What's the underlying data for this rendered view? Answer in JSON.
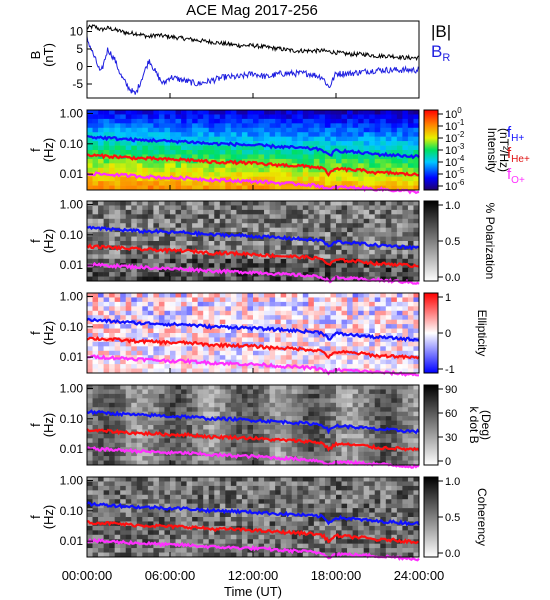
{
  "chart_data": {
    "type": "heatmap",
    "title": "ACE Mag 2017-256",
    "xlabel": "Time (UT)",
    "x_ticks": [
      "00:00:00",
      "06:00:00",
      "12:00:00",
      "18:00:00",
      "24:00:00"
    ],
    "xlim": [
      0,
      24
    ],
    "panels": [
      {
        "id": "b-field",
        "type": "line",
        "ylabel_main": "B",
        "ylabel_unit": "(nT)",
        "ylim": [
          -9,
          13
        ],
        "y_ticks": [
          "10",
          "5",
          "0",
          "-5"
        ],
        "y_tick_values": [
          10,
          5,
          0,
          -5
        ],
        "legend": [
          "|B|",
          "B_R"
        ],
        "series": [
          {
            "name": "|B|",
            "color": "#000000",
            "x": [
              0,
              0.5,
              1,
              1.5,
              2,
              2.5,
              3,
              3.5,
              4,
              4.5,
              5,
              6,
              7,
              8,
              9,
              10,
              11,
              12,
              13,
              14,
              15,
              16,
              17,
              18,
              19,
              20,
              21,
              22,
              23,
              24
            ],
            "values": [
              11,
              11.5,
              10.5,
              11,
              10.5,
              10,
              9.5,
              9.5,
              9,
              8.5,
              9,
              8.5,
              8,
              7.5,
              7,
              6.5,
              6,
              6,
              5.5,
              5,
              4.5,
              4.5,
              4.5,
              4,
              3.5,
              3.5,
              3,
              3,
              2.5,
              2.5
            ]
          },
          {
            "name": "B_R",
            "color": "#1f1fe0",
            "x": [
              0,
              0.5,
              1,
              1.5,
              2,
              2.5,
              3,
              3.5,
              4,
              4.5,
              5,
              5.5,
              6,
              7,
              8,
              9,
              10,
              11,
              12,
              13,
              14,
              15,
              16,
              17,
              17.5,
              18,
              19,
              20,
              21,
              22,
              23,
              24
            ],
            "values": [
              8,
              3,
              -2,
              5,
              2,
              -3,
              -6,
              -8,
              -3,
              2,
              -2,
              -5,
              -3,
              -4,
              -5,
              -4,
              -3,
              -3,
              -2,
              -3,
              -2,
              -2,
              -2,
              -3,
              -6,
              -2,
              -2,
              -1.5,
              -1,
              -1,
              -1,
              -1
            ]
          }
        ]
      },
      {
        "id": "intensity",
        "type": "heatmap",
        "ylabel_main": "f",
        "ylabel_unit": "(Hz)",
        "y_ticks": [
          "1.00",
          "0.10",
          "0.01"
        ],
        "colorbar_ticks": [
          "10^0",
          "10^-1",
          "10^-2",
          "10^-3",
          "10^-4",
          "10^-5",
          "10^-6"
        ],
        "colorbar_label": "Intensity",
        "colorbar_unit": "(nT²/Hz)",
        "legend": [
          "f_H+",
          "f_He+",
          "f_O+"
        ]
      },
      {
        "id": "polarization",
        "type": "heatmap",
        "ylabel_main": "f",
        "ylabel_unit": "(Hz)",
        "y_ticks": [
          "1.00",
          "0.10",
          "0.01"
        ],
        "colorbar_ticks": [
          "1.0",
          "0.5",
          "0.0"
        ],
        "colorbar_label": "% Polarization"
      },
      {
        "id": "ellipticity",
        "type": "heatmap",
        "ylabel_main": "f",
        "ylabel_unit": "(Hz)",
        "y_ticks": [
          "1.00",
          "0.10",
          "0.01"
        ],
        "colorbar_ticks": [
          "1",
          "0",
          "-1"
        ],
        "colorbar_label": "Ellipticity"
      },
      {
        "id": "kdotb",
        "type": "heatmap",
        "ylabel_main": "f",
        "ylabel_unit": "(Hz)",
        "y_ticks": [
          "1.00",
          "0.10",
          "0.01"
        ],
        "colorbar_ticks": [
          "90",
          "60",
          "30",
          "0"
        ],
        "colorbar_label": "k dot B",
        "colorbar_unit": "(Deg)"
      },
      {
        "id": "coherency",
        "type": "heatmap",
        "ylabel_main": "f",
        "ylabel_unit": "(Hz)",
        "y_ticks": [
          "1.00",
          "0.10",
          "0.01"
        ],
        "colorbar_ticks": [
          "1.0",
          "0.5",
          "0.0"
        ],
        "colorbar_label": "Coherency"
      }
    ],
    "gyrofrequency_curves": {
      "x": [
        0,
        1,
        2,
        3,
        4,
        5,
        6,
        7,
        8,
        9,
        10,
        11,
        12,
        13,
        14,
        15,
        16,
        17,
        17.5,
        18,
        19,
        20,
        21,
        22,
        23,
        24
      ],
      "f_H+": [
        0.17,
        0.16,
        0.15,
        0.14,
        0.13,
        0.13,
        0.12,
        0.12,
        0.11,
        0.1,
        0.1,
        0.095,
        0.09,
        0.085,
        0.08,
        0.075,
        0.07,
        0.065,
        0.04,
        0.06,
        0.055,
        0.05,
        0.045,
        0.043,
        0.04,
        0.038
      ],
      "f_He+": [
        0.042,
        0.04,
        0.038,
        0.035,
        0.033,
        0.032,
        0.03,
        0.03,
        0.028,
        0.025,
        0.025,
        0.024,
        0.023,
        0.021,
        0.02,
        0.019,
        0.018,
        0.016,
        0.01,
        0.015,
        0.014,
        0.013,
        0.011,
        0.011,
        0.01,
        0.0095
      ],
      "f_O+": [
        0.0105,
        0.01,
        0.0095,
        0.009,
        0.0085,
        0.008,
        0.0075,
        0.0075,
        0.007,
        0.0065,
        0.0062,
        0.006,
        0.0058,
        0.0055,
        0.005,
        0.0048,
        0.0045,
        0.004,
        0.003,
        0.0038,
        0.0036,
        0.0034,
        0.0032,
        0.003,
        0.0028,
        0.0026
      ],
      "colors": {
        "f_H+": "#1010ff",
        "f_He+": "#ff1010",
        "f_O+": "#ff30ff"
      }
    }
  }
}
